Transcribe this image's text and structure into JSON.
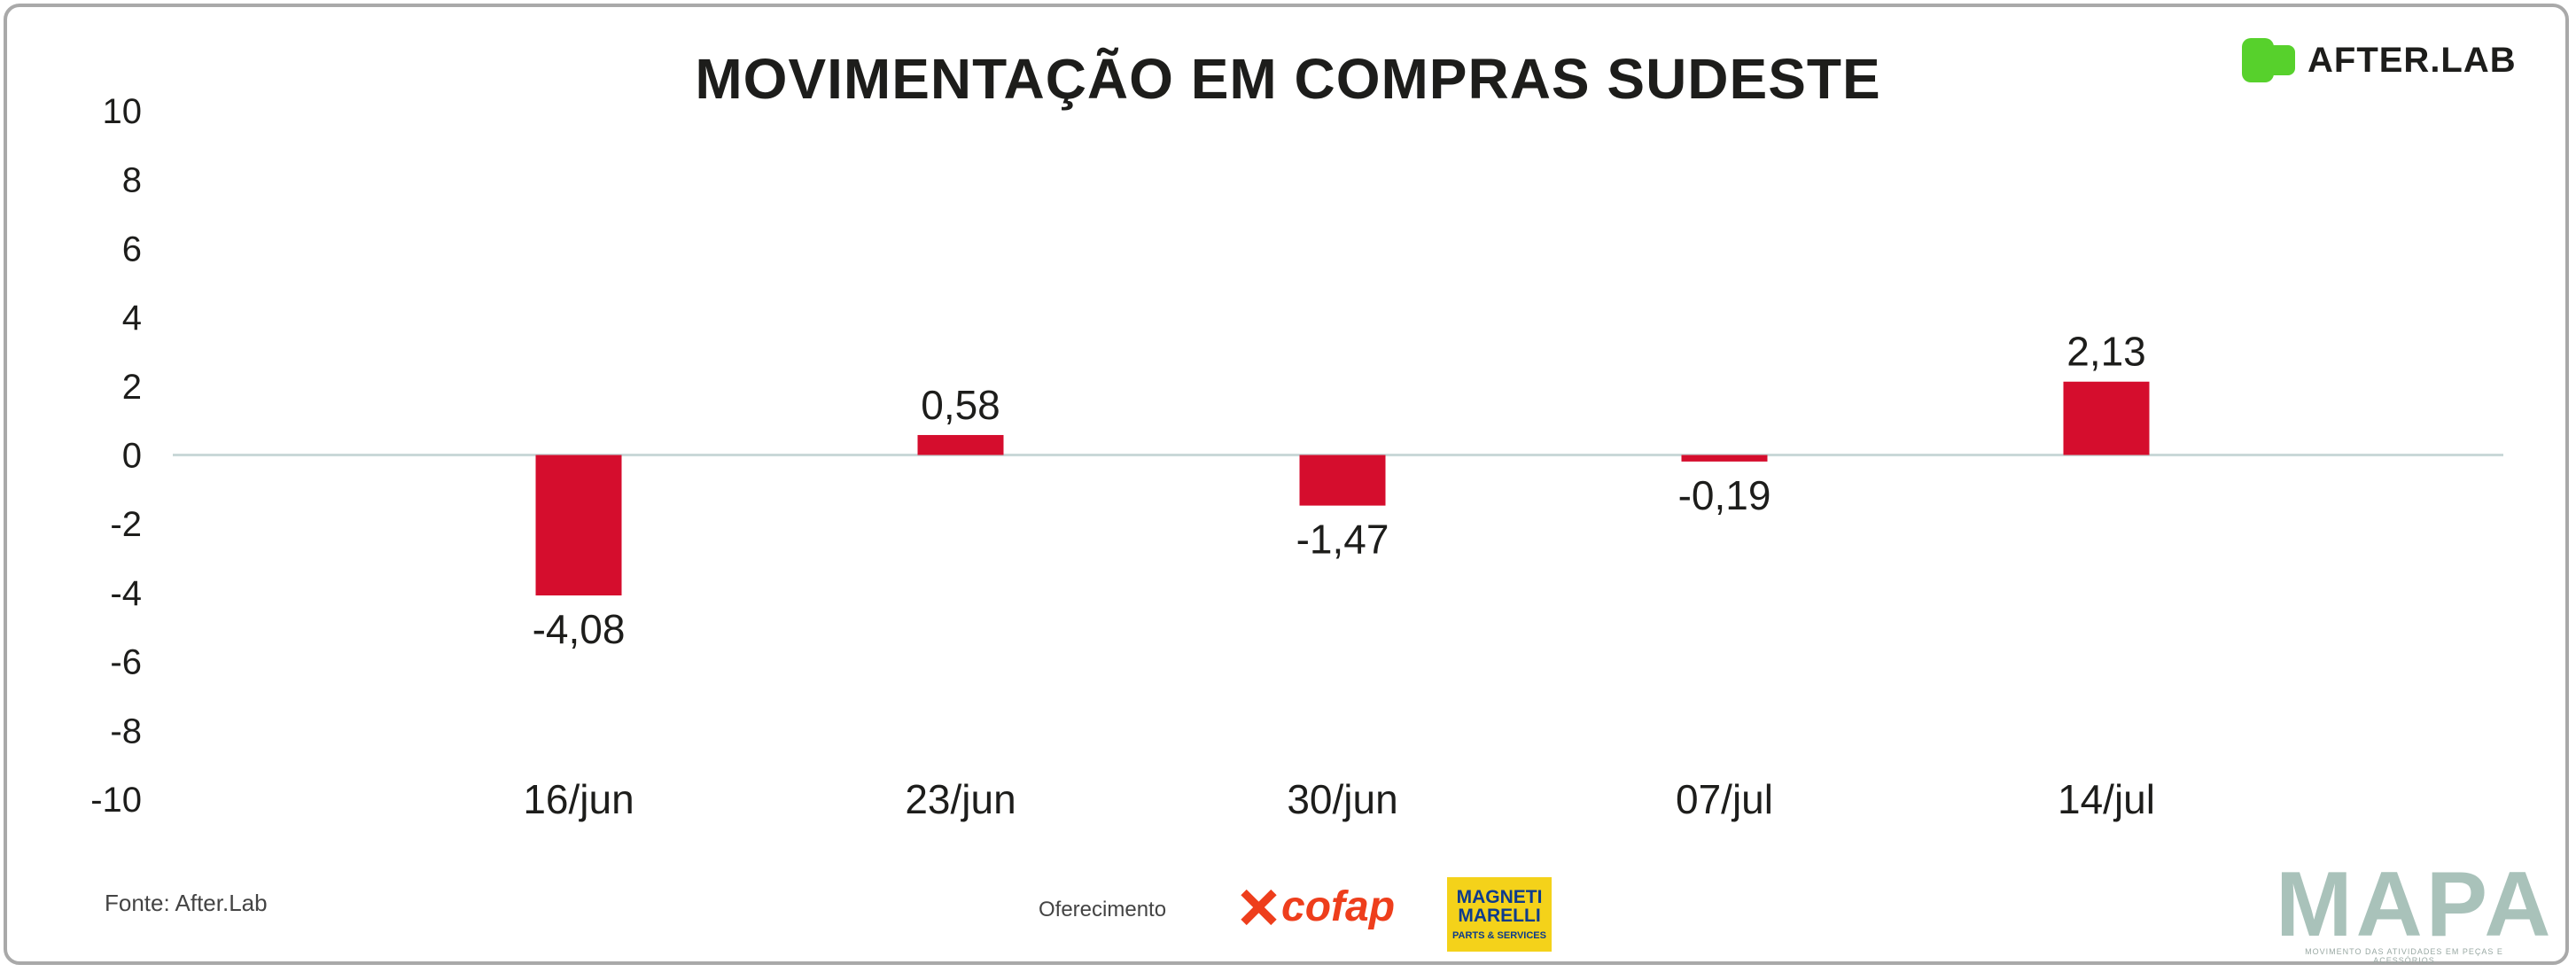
{
  "header": {
    "title": "MOVIMENTAÇÃO EM COMPRAS SUDESTE",
    "brand": "AFTER.LAB"
  },
  "footer": {
    "source": "Fonte: After.Lab",
    "sponsor_label": "Oferecimento",
    "sponsor1": "cofap",
    "sponsor2_line1": "MAGNETI",
    "sponsor2_line2": "MARELLI",
    "sponsor2_line3": "PARTS & SERVICES",
    "logo": "MAPA",
    "logo_tagline": "MOVIMENTO DAS ATIVIDADES EM PEÇAS E ACESSÓRIOS"
  },
  "colors": {
    "bar": "#d50d2d",
    "zero_line": "#c9d8d8",
    "brand_green": "#57d12c",
    "cofap_red": "#ee3e1c",
    "magneti_yellow": "#f4d21a",
    "mapa_logo": "#a9c2ba"
  },
  "chart_data": {
    "type": "bar",
    "title": "MOVIMENTAÇÃO EM COMPRAS SUDESTE",
    "categories": [
      "16/jun",
      "23/jun",
      "30/jun",
      "07/jul",
      "14/jul"
    ],
    "values": [
      -4.08,
      0.58,
      -1.47,
      -0.19,
      2.13
    ],
    "value_labels": [
      "-4,08",
      "0,58",
      "-1,47",
      "-0,19",
      "2,13"
    ],
    "ylim": [
      -10,
      10
    ],
    "yticks": [
      -10,
      -8,
      -6,
      -4,
      -2,
      0,
      2,
      4,
      6,
      8,
      10
    ],
    "ytick_labels": [
      "-10",
      "-8",
      "-6",
      "-4",
      "-2",
      "0",
      "2",
      "4",
      "6",
      "8",
      "10"
    ],
    "grid": false,
    "xlabel": "",
    "ylabel": ""
  }
}
